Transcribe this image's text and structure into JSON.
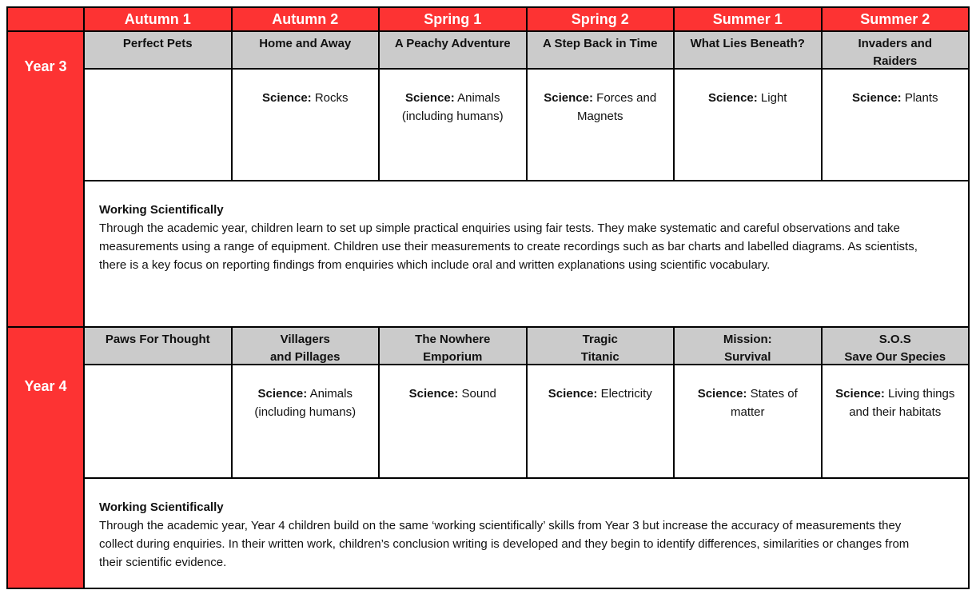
{
  "colors": {
    "accent_red": "#fd3333",
    "row_gray": "#cbcbcb",
    "grid_black": "#000000",
    "header_text": "#ffffff",
    "body_text": "#111111"
  },
  "table": {
    "terms": [
      "Autumn 1",
      "Autumn 2",
      "Spring 1",
      "Spring 2",
      "Summer 1",
      "Summer 2"
    ],
    "science_label": "Science:",
    "working_scientifically_title": "Working Scientifically",
    "years": [
      {
        "label": "Year 3",
        "topics": [
          "Perfect Pets",
          "Home and Away",
          "A Peachy Adventure",
          "A Step Back in Time",
          "What Lies Beneath?",
          "Invaders and\nRaiders"
        ],
        "science": [
          "",
          "Rocks",
          "Animals (including humans)",
          "Forces and Magnets",
          "Light",
          "Plants"
        ],
        "working_scientifically": "Through the academic year, children learn to set up simple practical enquiries using fair tests. They make systematic and careful observations and take measurements using a range of equipment. Children use their measurements to create recordings such as bar charts and labelled diagrams. As scientists, there is a key focus on reporting findings from enquiries which include oral and written explanations using scientific vocabulary."
      },
      {
        "label": "Year 4",
        "topics": [
          "Paws For Thought",
          "Villagers\nand Pillages",
          "The Nowhere\nEmporium",
          "Tragic\nTitanic",
          "Mission:\nSurvival",
          "S.O.S\nSave Our Species"
        ],
        "science": [
          "",
          "Animals (including humans)",
          "Sound",
          "Electricity",
          "States of matter",
          "Living things and their habitats"
        ],
        "working_scientifically": "Through the academic year, Year 4 children build on the same ‘working scientifically’ skills from Year 3 but increase the accuracy of measurements they collect during enquiries. In their written work, children’s conclusion writing is developed and they begin to identify differences, similarities or changes from their scientific evidence."
      }
    ]
  }
}
